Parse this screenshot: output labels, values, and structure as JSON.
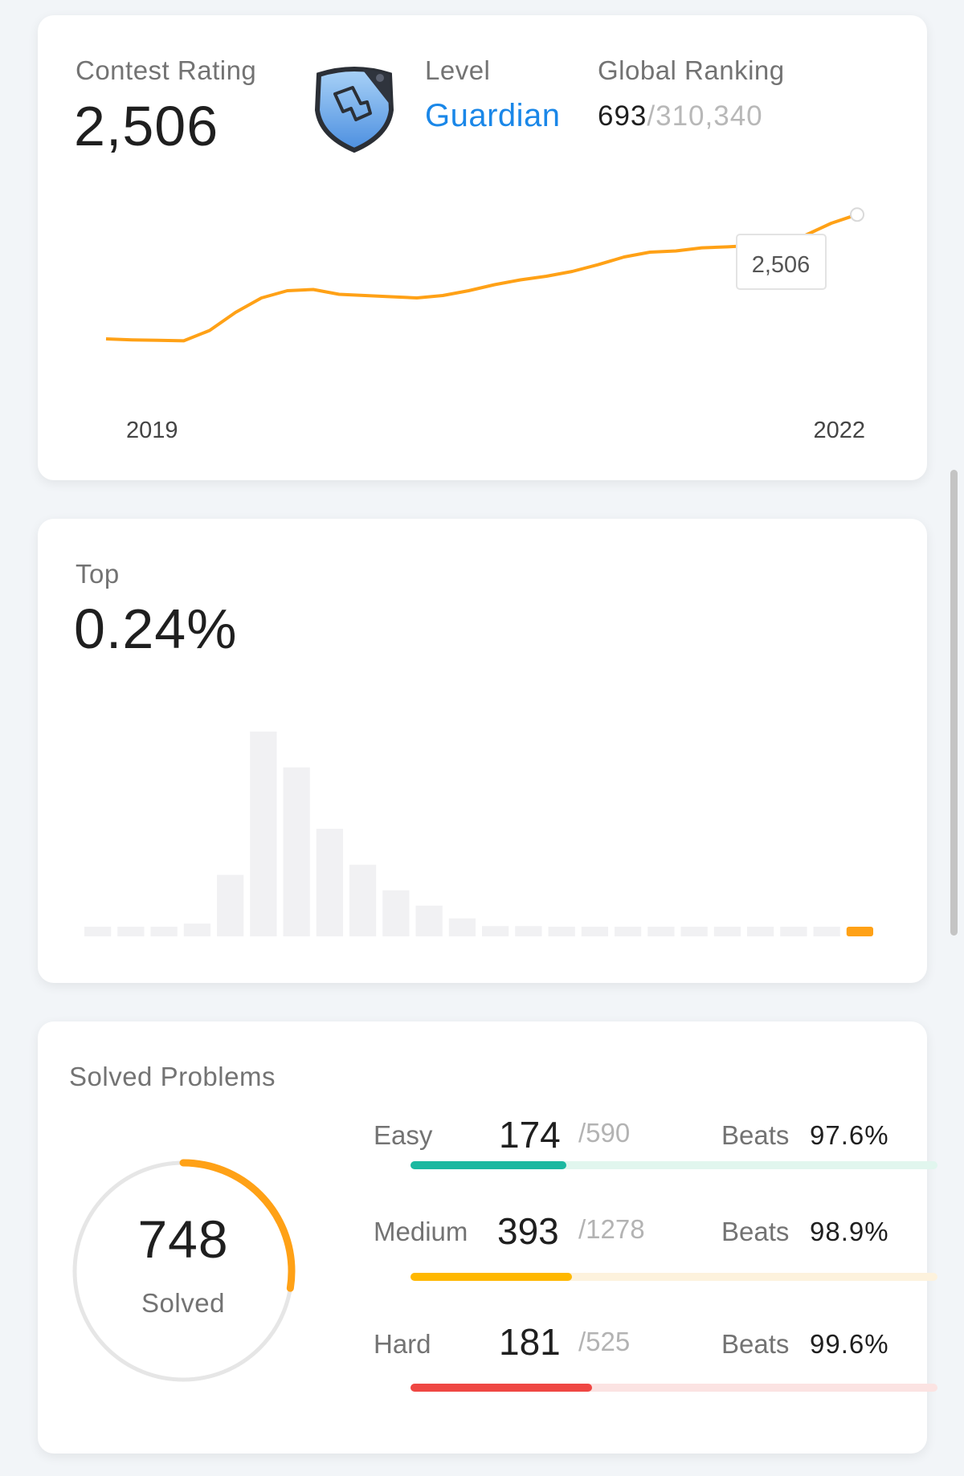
{
  "rating": {
    "label": "Contest Rating",
    "value": "2,506",
    "level_label": "Level",
    "level_value": "Guardian",
    "ranking_label": "Global Ranking",
    "ranking_value": "693",
    "ranking_total": "/310,340",
    "badge_icon": "guardian-shield-icon",
    "accent_color": "#ffa116",
    "level_color": "#1a87e8"
  },
  "top": {
    "label": "Top",
    "value": "0.24%"
  },
  "solved": {
    "title": "Solved Problems",
    "total": "748",
    "total_label": "Solved",
    "rows": [
      {
        "label": "Easy",
        "count": "174",
        "total": "/590",
        "beats_label": "Beats",
        "beats": "97.6%",
        "progress": 0.295,
        "color": "#1cb8a0",
        "track": "#e1f6ee"
      },
      {
        "label": "Medium",
        "count": "393",
        "total": "/1278",
        "beats_label": "Beats",
        "beats": "98.9%",
        "progress": 0.307,
        "color": "#ffb800",
        "track": "#fdf2dd"
      },
      {
        "label": "Hard",
        "count": "181",
        "total": "/525",
        "beats_label": "Beats",
        "beats": "99.6%",
        "progress": 0.345,
        "color": "#ef4743",
        "track": "#fbe3e2"
      }
    ]
  },
  "chart_data": [
    {
      "type": "line",
      "series": [
        {
          "values": [
            1990,
            1986,
            1984,
            1982,
            2025,
            2100,
            2160,
            2190,
            2195,
            2175,
            2170,
            2165,
            2160,
            2170,
            2190,
            2215,
            2235,
            2250,
            2270,
            2298,
            2330,
            2350,
            2355,
            2368,
            2372,
            2378,
            2390,
            2420,
            2470,
            2506
          ]
        }
      ],
      "xtick_labels": [
        "2019",
        "2022"
      ],
      "tooltip": "2,506",
      "ylim": [
        1900,
        2600
      ],
      "grid": false
    },
    {
      "type": "bar",
      "values": [
        1,
        1,
        1,
        2.5,
        12,
        40,
        33,
        21,
        14,
        9,
        6,
        3.5,
        2,
        2,
        1.5,
        1.5,
        1.5,
        1.2,
        1.2,
        1,
        1,
        1,
        0.8,
        0.8
      ],
      "highlight_index": 23,
      "ylim": [
        0,
        40
      ],
      "grid": false
    }
  ]
}
